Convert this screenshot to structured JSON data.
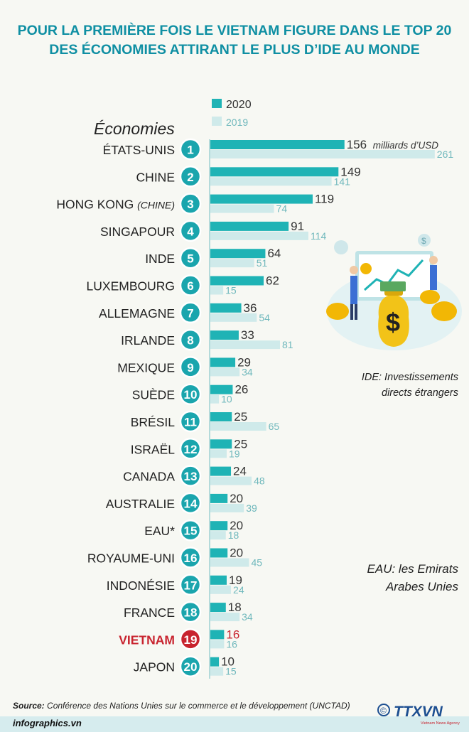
{
  "title": {
    "line1": "POUR LA PREMIÈRE FOIS LE VIETNAM FIGURE DANS LE TOP 20",
    "line2": "DES ÉCONOMIES ATTIRANT LE PLUS D’IDE AU MONDE"
  },
  "colors": {
    "bar2020": "#1fb3b5",
    "bar2019": "#cfeaea",
    "badge": "#1aa5ad",
    "highlight": "#c8232e",
    "label2019": "#6fb8bc"
  },
  "chart_data": {
    "type": "bar",
    "orientation": "horizontal",
    "legend": [
      "2020",
      "2019"
    ],
    "y_header": "Économies",
    "unit_label": "milliards d’USD",
    "categories": [
      "ÉTATS-UNIS",
      "CHINE",
      "HONG KONG",
      "SINGAPOUR",
      "INDE",
      "LUXEMBOURG",
      "ALLEMAGNE",
      "IRLANDE",
      "MEXIQUE",
      "SUÈDE",
      "BRÉSIL",
      "ISRAËL",
      "CANADA",
      "AUSTRALIE",
      "EAU*",
      "ROYAUME-UNI",
      "INDONÉSIE",
      "FRANCE",
      "VIETNAM",
      "JAPON"
    ],
    "category_suffix": {
      "HONG KONG": "(CHINE)"
    },
    "ranks": [
      "1",
      "2",
      "3",
      "4",
      "5",
      "6",
      "7",
      "8",
      "9",
      "10",
      "11",
      "12",
      "13",
      "14",
      "15",
      "16",
      "17",
      "18",
      "19",
      "20"
    ],
    "highlight": "VIETNAM",
    "series": [
      {
        "name": "2020",
        "values": [
          156,
          149,
          119,
          91,
          64,
          62,
          36,
          33,
          29,
          26,
          25,
          25,
          24,
          20,
          20,
          20,
          19,
          18,
          16,
          10
        ]
      },
      {
        "name": "2019",
        "values": [
          261,
          141,
          74,
          114,
          51,
          15,
          54,
          81,
          34,
          10,
          65,
          19,
          48,
          39,
          18,
          45,
          24,
          34,
          16,
          15
        ]
      }
    ]
  },
  "notes": {
    "ide_line1": "IDE: Investissements",
    "ide_line2": "directs étrangers",
    "eau_line1": "EAU: les Emirats",
    "eau_line2": "Arabes Unies"
  },
  "footer": {
    "source_label": "Source:",
    "source_text": "Conférence des Nations Unies sur le commerce et le développement (UNCTAD)",
    "site": "infographics.vn",
    "copyright": "©",
    "logo_text": "TTXVN",
    "logo_sub": "Vietnam News Agency"
  }
}
